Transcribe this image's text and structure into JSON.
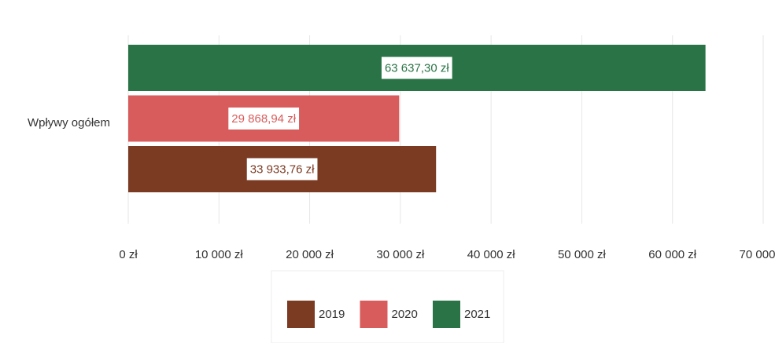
{
  "chart_data": {
    "type": "bar",
    "orientation": "horizontal",
    "categories": [
      "Wpływy ogółem"
    ],
    "series": [
      {
        "name": "2019",
        "color": "#7b3a22",
        "values": [
          33933.76
        ],
        "value_labels": [
          "33 933,76 zł"
        ]
      },
      {
        "name": "2020",
        "color": "#d85c5c",
        "values": [
          29868.94
        ],
        "value_labels": [
          "29 868,94 zł"
        ]
      },
      {
        "name": "2021",
        "color": "#2a7346",
        "values": [
          63637.3
        ],
        "value_labels": [
          "63 637,30 zł"
        ]
      }
    ],
    "xlim": [
      0,
      70000
    ],
    "xticks": [
      {
        "value": 0,
        "label": "0 zł"
      },
      {
        "value": 10000,
        "label": "10 000 zł"
      },
      {
        "value": 20000,
        "label": "20 000 zł"
      },
      {
        "value": 30000,
        "label": "30 000 zł"
      },
      {
        "value": 40000,
        "label": "40 000 zł"
      },
      {
        "value": 50000,
        "label": "50 000 zł"
      },
      {
        "value": 60000,
        "label": "60 000 zł"
      },
      {
        "value": 70000,
        "label": "70 000 zł"
      }
    ],
    "grid": true,
    "legend": "bottom"
  }
}
